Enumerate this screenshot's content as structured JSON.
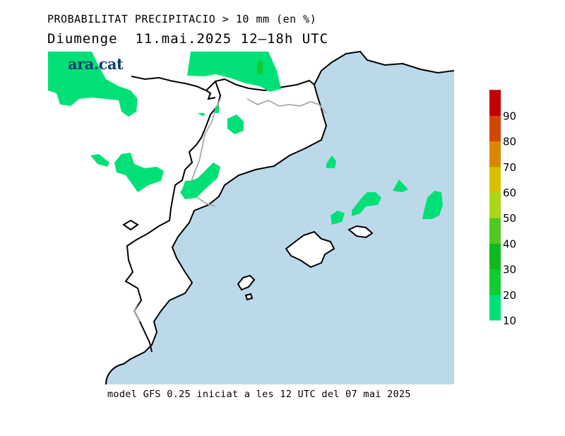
{
  "header": {
    "title": "PROBABILITAT PRECIPITACIO > 10 mm (en %)",
    "subtitle": "Diumenge  11.mai.2025 12–18h UTC"
  },
  "logo": {
    "text": "ara.cat"
  },
  "footer": {
    "text": "model GFS 0.25 iniciat a les 12 UTC del 07 mai 2025"
  },
  "legend": {
    "labels": [
      "10",
      "20",
      "30",
      "40",
      "50",
      "60",
      "70",
      "80",
      "90"
    ],
    "colors": [
      "#00e076",
      "#10cc30",
      "#10b820",
      "#50c820",
      "#a8d818",
      "#d8c000",
      "#d88800",
      "#d04800",
      "#c00000"
    ]
  },
  "map": {
    "sea_color": "#bcd9ea",
    "rain_color": "#00e076"
  }
}
